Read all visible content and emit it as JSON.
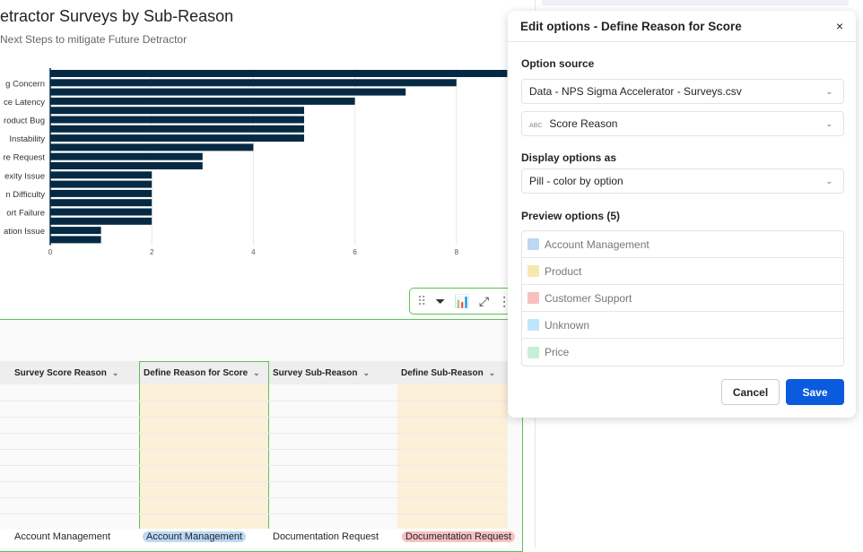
{
  "chart_data": {
    "type": "bar",
    "orientation": "horizontal",
    "title": "etractor Surveys by Sub-Reason",
    "subtitle": "Next Steps to mitigate Future Detractor",
    "category_labels": [
      "",
      "g Concern",
      "",
      "ce Latency",
      "",
      "roduct Bug",
      "",
      "Instability",
      "",
      "re Request",
      "",
      "exity Issue",
      "",
      "n Difficulty",
      "",
      "ort Failure",
      "",
      "ation Issue",
      ""
    ],
    "values": [
      9,
      8,
      7,
      6,
      5,
      5,
      5,
      5,
      4,
      3,
      3,
      2,
      2,
      2,
      2,
      2,
      2,
      1,
      1
    ],
    "xticks": [
      0,
      2,
      4,
      6,
      8
    ],
    "xlim": [
      0,
      9
    ],
    "grid": true,
    "bar_color": "#062a43"
  },
  "toolbar": {
    "icons": [
      "drag-handle-icon",
      "filter-icon",
      "add-chart-icon",
      "expand-icon",
      "more-icon"
    ]
  },
  "table": {
    "columns": [
      "Survey Score Reason",
      "Define Reason for Score",
      "Survey Sub-Reason",
      "Define Sub-Reason"
    ],
    "last_row": [
      "Account Management",
      "Account Management",
      "Documentation Request",
      "Documentation Request"
    ],
    "highlight_color": "#fdf0d8"
  },
  "dialog": {
    "title": "Edit options - Define Reason for Score",
    "option_source_label": "Option source",
    "source_value": "Data - NPS Sigma Accelerator - Surveys.csv",
    "column_type": "ABC",
    "column_value": "Score Reason",
    "display_label": "Display options as",
    "display_value": "Pill - color by option",
    "preview_label": "Preview options (5)",
    "options": [
      {
        "label": "Account Management",
        "color": "#bcd8f5"
      },
      {
        "label": "Product",
        "color": "#f7e8b0"
      },
      {
        "label": "Customer Support",
        "color": "#f7c0c0"
      },
      {
        "label": "Unknown",
        "color": "#bde6fb"
      },
      {
        "label": "Price",
        "color": "#c6eed9"
      }
    ],
    "cancel": "Cancel",
    "save": "Save",
    "save_color": "#0a5bdd"
  }
}
